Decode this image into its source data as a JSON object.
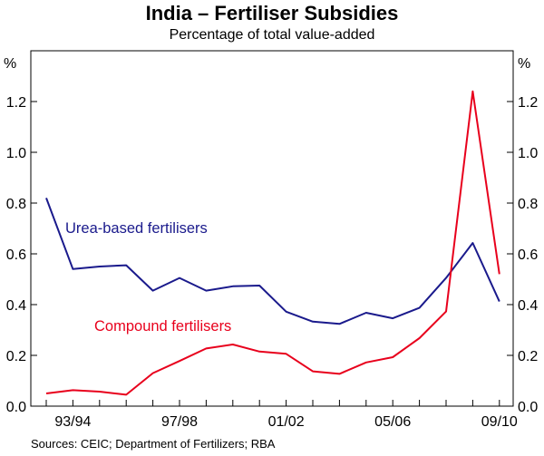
{
  "chart_data": {
    "type": "line",
    "title": "India – Fertiliser Subsidies",
    "subtitle": "Percentage of total value-added",
    "y_unit_left": "%",
    "y_unit_right": "%",
    "ylim": [
      0,
      1.4
    ],
    "yticks": [
      "0.0",
      "0.2",
      "0.4",
      "0.6",
      "0.8",
      "1.0",
      "1.2"
    ],
    "x": [
      "1992/93",
      "1993/94",
      "1994/95",
      "1995/96",
      "1996/97",
      "1997/98",
      "1998/99",
      "1999/00",
      "2000/01",
      "2001/02",
      "2002/03",
      "2003/04",
      "2004/05",
      "2005/06",
      "2006/07",
      "2007/08",
      "2008/09",
      "2009/10"
    ],
    "xtick_labels": [
      "93/94",
      "97/98",
      "01/02",
      "05/06",
      "09/10"
    ],
    "xtick_indices": [
      1,
      5,
      9,
      13,
      17
    ],
    "series": [
      {
        "name": "Urea-based fertilisers",
        "color": "#1a1a8c",
        "values": [
          0.82,
          0.54,
          0.55,
          0.555,
          0.455,
          0.505,
          0.455,
          0.472,
          0.475,
          0.372,
          0.333,
          0.324,
          0.368,
          0.346,
          0.387,
          0.505,
          0.643,
          0.412
        ]
      },
      {
        "name": "Compound fertilisers",
        "color": "#e8001c",
        "values": [
          0.05,
          0.063,
          0.057,
          0.045,
          0.13,
          0.178,
          0.227,
          0.243,
          0.215,
          0.206,
          0.137,
          0.127,
          0.172,
          0.193,
          0.268,
          0.373,
          1.24,
          0.52
        ]
      }
    ],
    "source": "Sources: CEIC; Department of Fertilizers; RBA"
  }
}
